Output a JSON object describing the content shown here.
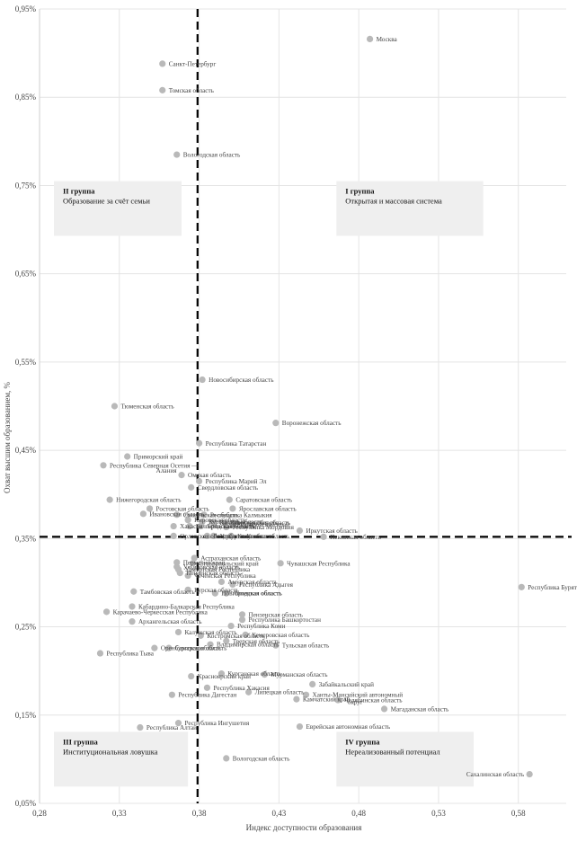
{
  "chart_data": {
    "type": "scatter",
    "xlabel": "Индекс доступности образования",
    "ylabel": "Охват высшим образованием, %",
    "xlim": [
      0.28,
      0.61
    ],
    "ylim": [
      0.05,
      0.95
    ],
    "x_ticks": [
      "0,28",
      "0,33",
      "0,38",
      "0,43",
      "0,48",
      "0,53",
      "0,58"
    ],
    "y_ticks": [
      "0,05%",
      "0,15%",
      "0,25%",
      "0,35%",
      "0,45%",
      "0,55%",
      "0,65%",
      "0,75%",
      "0,85%",
      "0,95%"
    ],
    "x_tick_values": [
      0.28,
      0.33,
      0.38,
      0.43,
      0.48,
      0.53,
      0.58
    ],
    "y_tick_values": [
      0.05,
      0.15,
      0.25,
      0.35,
      0.45,
      0.55,
      0.65,
      0.75,
      0.85,
      0.95
    ],
    "divider_x": 0.379,
    "divider_y": 0.352,
    "quadrants": [
      {
        "id": "II",
        "title": "II группа",
        "subtitle": "Образование за счёт семьи",
        "x0": 0.289,
        "x1": 0.369,
        "y0": 0.693,
        "y1": 0.755
      },
      {
        "id": "I",
        "title": "I группа",
        "subtitle": "Открытая и массовая  система",
        "x0": 0.466,
        "x1": 0.558,
        "y0": 0.693,
        "y1": 0.755
      },
      {
        "id": "III",
        "title": "III группа",
        "subtitle": "Институциональная ловушка",
        "x0": 0.289,
        "x1": 0.373,
        "y0": 0.069,
        "y1": 0.131
      },
      {
        "id": "IV",
        "title": "IV группа",
        "subtitle": "Нереализованный потенциал",
        "x0": 0.466,
        "x1": 0.552,
        "y0": 0.069,
        "y1": 0.131
      }
    ],
    "points": [
      {
        "label": "Москва",
        "x": 0.487,
        "y": 0.916
      },
      {
        "label": "Санкт-Петербург",
        "x": 0.357,
        "y": 0.888
      },
      {
        "label": "Томская область",
        "x": 0.357,
        "y": 0.858
      },
      {
        "label": "Вологодская область",
        "x": 0.366,
        "y": 0.785
      },
      {
        "label": "Новосибирская область",
        "x": 0.382,
        "y": 0.53
      },
      {
        "label": "Тюменская область",
        "x": 0.327,
        "y": 0.5
      },
      {
        "label": "Воронежская область",
        "x": 0.428,
        "y": 0.481
      },
      {
        "label": "Республика Татарстан",
        "x": 0.38,
        "y": 0.458
      },
      {
        "label": "Приморский край",
        "x": 0.335,
        "y": 0.443
      },
      {
        "label": "Республика Северная Осетия —",
        "x": 0.32,
        "y": 0.433
      },
      {
        "label": "Алания",
        "x": 0.353,
        "y": 0.427,
        "nodot": true
      },
      {
        "label": "Омская область",
        "x": 0.369,
        "y": 0.422
      },
      {
        "label": "Республика Марий Эл",
        "x": 0.38,
        "y": 0.415
      },
      {
        "label": "Свердловская область",
        "x": 0.375,
        "y": 0.408
      },
      {
        "label": "Нижегородская область",
        "x": 0.324,
        "y": 0.394
      },
      {
        "label": "Саратовская область",
        "x": 0.399,
        "y": 0.394
      },
      {
        "label": "Ростовская область",
        "x": 0.349,
        "y": 0.384
      },
      {
        "label": "Ярославская область",
        "x": 0.401,
        "y": 0.384
      },
      {
        "label": "Ивановская область",
        "x": 0.345,
        "y": 0.378
      },
      {
        "label": "Смоленская область",
        "x": 0.366,
        "y": 0.377
      },
      {
        "label": "Республика Калмыкия",
        "x": 0.383,
        "y": 0.377
      },
      {
        "label": "Кировская область",
        "x": 0.373,
        "y": 0.371
      },
      {
        "label": "Курганская область",
        "x": 0.382,
        "y": 0.369
      },
      {
        "label": "Калининградская область",
        "x": 0.389,
        "y": 0.368
      },
      {
        "label": "Тверская область",
        "x": 0.396,
        "y": 0.368
      },
      {
        "label": "Хабаровский край",
        "x": 0.401,
        "y": 0.366
      },
      {
        "label": "Хакасия",
        "x": 0.364,
        "y": 0.364
      },
      {
        "label": "Белгородская область",
        "x": 0.374,
        "y": 0.364
      },
      {
        "label": "Брянская область",
        "x": 0.381,
        "y": 0.364
      },
      {
        "label": "Республика Мордовия",
        "x": 0.397,
        "y": 0.363
      },
      {
        "label": "Иркутская область",
        "x": 0.443,
        "y": 0.359
      },
      {
        "label": "Орловская область",
        "x": 0.364,
        "y": 0.353
      },
      {
        "label": "Республика Коми",
        "x": 0.385,
        "y": 0.353
      },
      {
        "label": "Удмуртская область",
        "x": 0.389,
        "y": 0.353
      },
      {
        "label": "Калужская область",
        "x": 0.4,
        "y": 0.353
      },
      {
        "label": "Псковская область",
        "x": 0.458,
        "y": 0.352
      },
      {
        "label": "Астраханская область",
        "x": 0.377,
        "y": 0.328
      },
      {
        "label": "Пермский край",
        "x": 0.366,
        "y": 0.323
      },
      {
        "label": "Ставропольский край",
        "x": 0.376,
        "y": 0.322
      },
      {
        "label": "Ульяновская область",
        "x": 0.366,
        "y": 0.318
      },
      {
        "label": "Чувашская Республика",
        "x": 0.431,
        "y": 0.322
      },
      {
        "label": "Удмуртская Республика",
        "x": 0.367,
        "y": 0.315
      },
      {
        "label": "Пензенская область",
        "x": 0.368,
        "y": 0.311
      },
      {
        "label": "Чеченская Республика",
        "x": 0.373,
        "y": 0.308
      },
      {
        "label": "Амурская область",
        "x": 0.394,
        "y": 0.301
      },
      {
        "label": "Республика Адыгея",
        "x": 0.401,
        "y": 0.298
      },
      {
        "label": "Республика Бурятия",
        "x": 0.582,
        "y": 0.295
      },
      {
        "label": "Курская область",
        "x": 0.373,
        "y": 0.292
      },
      {
        "label": "Тамбовская область",
        "x": 0.339,
        "y": 0.29
      },
      {
        "label": "Новгородская область",
        "x": 0.39,
        "y": 0.288
      },
      {
        "label": "Липецкая область",
        "x": 0.397,
        "y": 0.288
      },
      {
        "label": "Кабардино-Балкарская Республика",
        "x": 0.338,
        "y": 0.273
      },
      {
        "label": "Карачаево-Черкесская Республика",
        "x": 0.322,
        "y": 0.267
      },
      {
        "label": "Пензенская область",
        "x": 0.407,
        "y": 0.264
      },
      {
        "label": "Республика Башкортостан",
        "x": 0.407,
        "y": 0.258
      },
      {
        "label": "Архангельская область",
        "x": 0.338,
        "y": 0.256
      },
      {
        "label": "Республика Коми",
        "x": 0.4,
        "y": 0.251
      },
      {
        "label": "Калужская область",
        "x": 0.367,
        "y": 0.244
      },
      {
        "label": "Костромская область",
        "x": 0.381,
        "y": 0.24
      },
      {
        "label": "Кемеровская область",
        "x": 0.409,
        "y": 0.241
      },
      {
        "label": "Тверская область",
        "x": 0.397,
        "y": 0.234
      },
      {
        "label": "Владимирская область",
        "x": 0.387,
        "y": 0.23
      },
      {
        "label": "Тульская область",
        "x": 0.428,
        "y": 0.229
      },
      {
        "label": "Оренбургская область",
        "x": 0.352,
        "y": 0.226
      },
      {
        "label": "Самарская область",
        "x": 0.361,
        "y": 0.226
      },
      {
        "label": "Республика Тыва",
        "x": 0.318,
        "y": 0.22
      },
      {
        "label": "Курганская область",
        "x": 0.394,
        "y": 0.197
      },
      {
        "label": "Красноярский край",
        "x": 0.375,
        "y": 0.194
      },
      {
        "label": "Мурманская область",
        "x": 0.421,
        "y": 0.196
      },
      {
        "label": "Забайкальский край",
        "x": 0.451,
        "y": 0.185
      },
      {
        "label": "Республика Хакасия",
        "x": 0.385,
        "y": 0.181
      },
      {
        "label": "Липецкая область",
        "x": 0.411,
        "y": 0.176
      },
      {
        "label": "Республика Дагестан",
        "x": 0.363,
        "y": 0.173
      },
      {
        "label": "Ханты-Мансийский автономный",
        "x": 0.447,
        "y": 0.173
      },
      {
        "label": "Камчатский край",
        "x": 0.441,
        "y": 0.168
      },
      {
        "label": "Челябинская область",
        "x": 0.467,
        "y": 0.167
      },
      {
        "label": "округ",
        "x": 0.473,
        "y": 0.165,
        "nodot": true
      },
      {
        "label": "Магаданская область",
        "x": 0.496,
        "y": 0.157
      },
      {
        "label": "Республика Ингушетия",
        "x": 0.367,
        "y": 0.141
      },
      {
        "label": "Республика Алтай",
        "x": 0.343,
        "y": 0.136
      },
      {
        "label": "Еврейская автономная область",
        "x": 0.443,
        "y": 0.137
      },
      {
        "label": "Вологодская область",
        "x": 0.397,
        "y": 0.101
      },
      {
        "label": "Сахалинская область",
        "x": 0.587,
        "y": 0.083,
        "labelLeft": true
      }
    ]
  }
}
